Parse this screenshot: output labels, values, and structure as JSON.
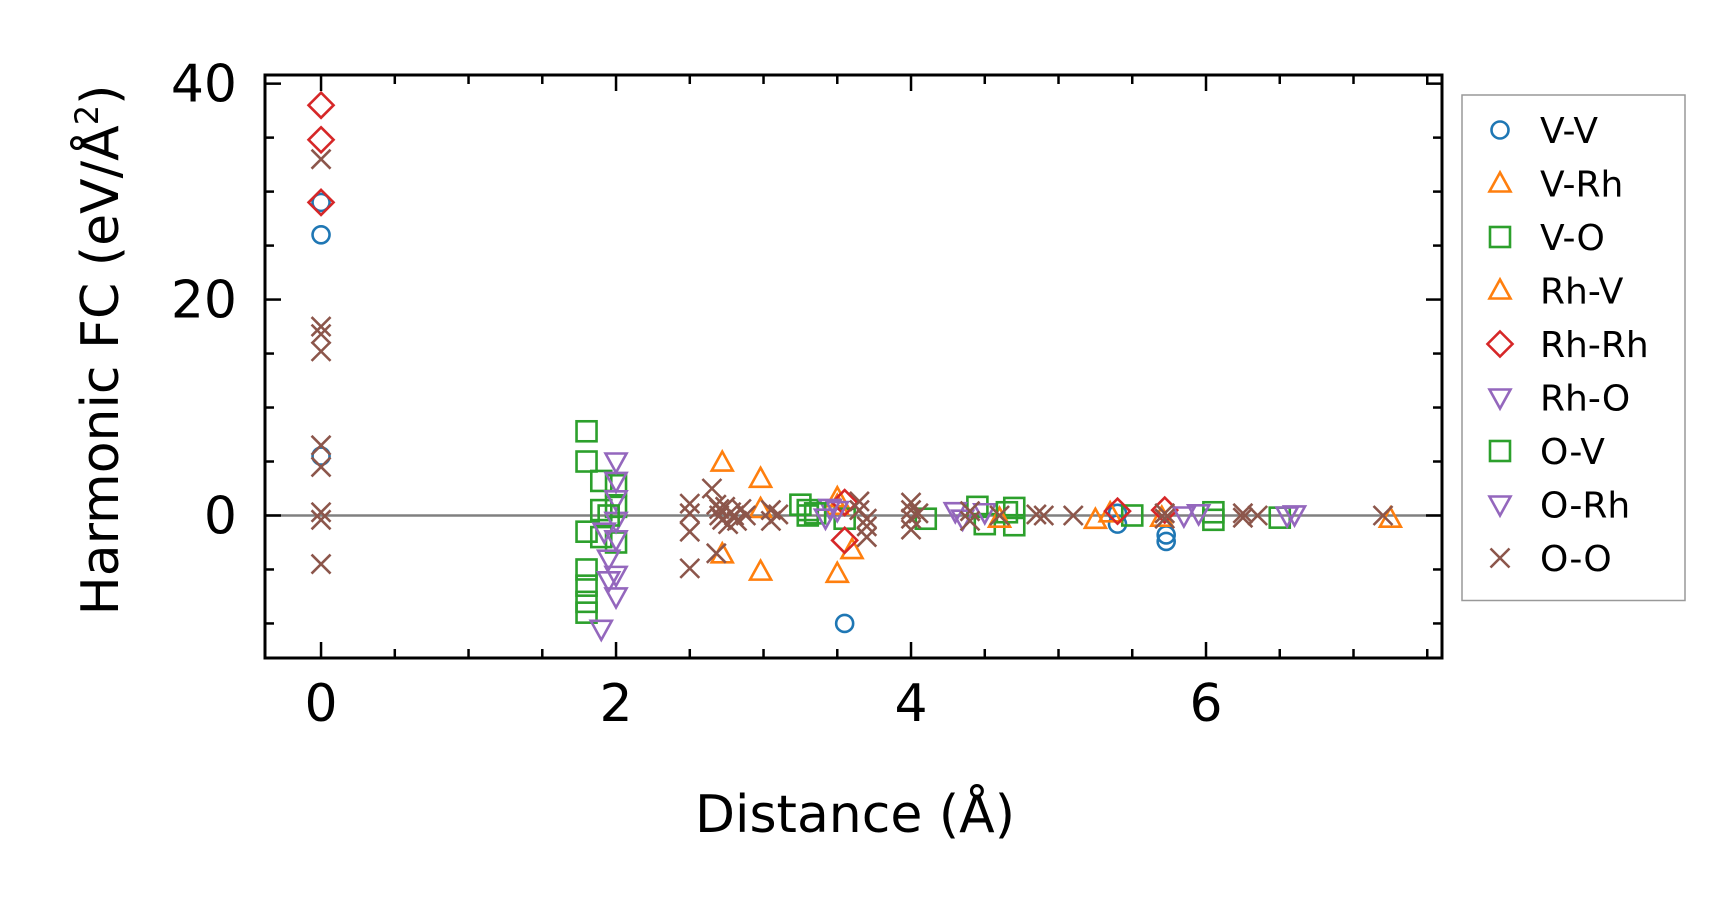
{
  "chart_data": {
    "type": "scatter",
    "xlabel": "Distance (Å)",
    "ylabel_main": "Harmonic FC (eV/Å",
    "ylabel_sup": "2",
    "ylabel_close": ")",
    "xlim": [
      -0.38,
      7.6
    ],
    "ylim": [
      -13.2,
      40.8
    ],
    "xticks": [
      0,
      2,
      4,
      6
    ],
    "xtick_labels": [
      "0",
      "2",
      "4",
      "6"
    ],
    "yticks": [
      0,
      20,
      40
    ],
    "ytick_labels": [
      "0",
      "20",
      "40"
    ],
    "zero_line": true,
    "grid": false,
    "legend_position": "outside-right",
    "series": [
      {
        "name": "V-V",
        "marker": "circle",
        "color": "#1f77b4",
        "points": [
          [
            0,
            29
          ],
          [
            0,
            26
          ],
          [
            0,
            5.5
          ],
          [
            3.55,
            -10
          ],
          [
            5.4,
            -0.8
          ],
          [
            5.73,
            -1.8
          ],
          [
            5.73,
            -2.4
          ],
          [
            5.4,
            0.2
          ]
        ]
      },
      {
        "name": "V-Rh",
        "marker": "triangle-up",
        "color": "#ff7f0e",
        "points": [
          [
            2.72,
            4.9
          ],
          [
            2.72,
            -3.6
          ],
          [
            2.98,
            3.4
          ],
          [
            2.98,
            -5.2
          ],
          [
            2.98,
            0.6
          ],
          [
            3.5,
            1.6
          ],
          [
            3.5,
            -5.4
          ],
          [
            3.6,
            -3.2
          ],
          [
            5.25,
            -0.4
          ],
          [
            7.25,
            -0.3
          ]
        ]
      },
      {
        "name": "V-O",
        "marker": "square",
        "color": "#2ca02c",
        "points": [
          [
            1.8,
            7.8
          ],
          [
            1.8,
            5
          ],
          [
            1.8,
            -1.5
          ],
          [
            1.8,
            -5
          ],
          [
            1.8,
            -6.5
          ],
          [
            1.8,
            -8
          ],
          [
            1.8,
            -9
          ],
          [
            1.9,
            3.2
          ],
          [
            1.9,
            0.5
          ],
          [
            1.9,
            -2
          ],
          [
            2.0,
            2.8
          ],
          [
            2.0,
            0.8
          ],
          [
            2.0,
            -2.5
          ],
          [
            3.25,
            1
          ],
          [
            3.3,
            0
          ],
          [
            3.3,
            0.5
          ],
          [
            3.55,
            -0.3
          ],
          [
            4.1,
            -0.3
          ],
          [
            4.45,
            0.8
          ],
          [
            4.5,
            -0.8
          ],
          [
            4.7,
            0.7
          ],
          [
            4.7,
            -0.9
          ],
          [
            5.5,
            0
          ],
          [
            6.05,
            0.3
          ],
          [
            6.05,
            -0.4
          ],
          [
            6.5,
            -0.2
          ]
        ]
      },
      {
        "name": "Rh-V",
        "marker": "triangle-up",
        "color": "#ff7f0e",
        "points": [
          [
            3.5,
            0.9
          ],
          [
            4.6,
            -0.3
          ],
          [
            5.35,
            0.2
          ],
          [
            5.7,
            -0.2
          ]
        ]
      },
      {
        "name": "Rh-Rh",
        "marker": "diamond",
        "color": "#d62728",
        "points": [
          [
            0,
            38
          ],
          [
            0,
            34.8
          ],
          [
            0,
            29
          ],
          [
            3.55,
            1.2
          ],
          [
            3.55,
            -2.3
          ],
          [
            5.4,
            0.4
          ],
          [
            5.72,
            0.5
          ]
        ]
      },
      {
        "name": "Rh-O",
        "marker": "triangle-down",
        "color": "#9467bd",
        "points": [
          [
            1.9,
            -10.5
          ],
          [
            1.95,
            -4
          ],
          [
            1.95,
            -6
          ],
          [
            2.0,
            5
          ],
          [
            2.0,
            3.2
          ],
          [
            2.0,
            1.5
          ],
          [
            2.0,
            -0.5
          ],
          [
            2.0,
            -2.2
          ],
          [
            2.0,
            -5.5
          ],
          [
            2.0,
            -7.5
          ],
          [
            3.45,
            0.7
          ],
          [
            3.5,
            0.5
          ],
          [
            4.3,
            0.4
          ],
          [
            4.5,
            0.3
          ],
          [
            5.85,
            0
          ],
          [
            5.95,
            0.2
          ],
          [
            6.55,
            0
          ]
        ]
      },
      {
        "name": "O-V",
        "marker": "square",
        "color": "#2ca02c",
        "points": [
          [
            1.95,
            0
          ],
          [
            3.35,
            0.2
          ],
          [
            4.65,
            0.3
          ]
        ]
      },
      {
        "name": "O-Rh",
        "marker": "triangle-down",
        "color": "#9467bd",
        "points": [
          [
            1.92,
            -1.5
          ],
          [
            3.42,
            -0.2
          ],
          [
            4.35,
            -0.3
          ],
          [
            6.6,
            0.1
          ]
        ]
      },
      {
        "name": "O-O",
        "marker": "x",
        "color": "#8c564b",
        "points": [
          [
            0,
            33
          ],
          [
            0,
            17.5
          ],
          [
            0,
            16.8
          ],
          [
            0,
            15.2
          ],
          [
            0,
            6.5
          ],
          [
            0,
            4.5
          ],
          [
            0,
            0.3
          ],
          [
            0,
            -0.4
          ],
          [
            0,
            -4.5
          ],
          [
            2.5,
            1.1
          ],
          [
            2.5,
            0.2
          ],
          [
            2.5,
            -1.5
          ],
          [
            2.5,
            -4.9
          ],
          [
            2.65,
            2.5
          ],
          [
            2.68,
            -3.5
          ],
          [
            2.68,
            1
          ],
          [
            2.7,
            0.6
          ],
          [
            2.7,
            0
          ],
          [
            2.72,
            -0.4
          ],
          [
            2.74,
            0.8
          ],
          [
            2.76,
            -0.8
          ],
          [
            2.78,
            0.3
          ],
          [
            2.8,
            0
          ],
          [
            2.82,
            -0.5
          ],
          [
            2.85,
            0.6
          ],
          [
            2.88,
            0
          ],
          [
            3.05,
            0.5
          ],
          [
            3.05,
            -0.5
          ],
          [
            3.1,
            0.1
          ],
          [
            3.65,
            1.3
          ],
          [
            3.65,
            0.5
          ],
          [
            3.7,
            -0.3
          ],
          [
            3.7,
            -1
          ],
          [
            3.7,
            -2
          ],
          [
            4.0,
            1.2
          ],
          [
            4.0,
            0.5
          ],
          [
            4.0,
            -0.3
          ],
          [
            4.0,
            -1.3
          ],
          [
            4.05,
            0.2
          ],
          [
            4.4,
            0.4
          ],
          [
            4.4,
            -0.5
          ],
          [
            4.6,
            0
          ],
          [
            4.85,
            0.1
          ],
          [
            4.9,
            0
          ],
          [
            5.1,
            0
          ],
          [
            5.72,
            0.2
          ],
          [
            5.72,
            -0.3
          ],
          [
            6.25,
            0.2
          ],
          [
            6.25,
            -0.2
          ],
          [
            6.35,
            0
          ],
          [
            7.2,
            0
          ]
        ]
      }
    ]
  }
}
